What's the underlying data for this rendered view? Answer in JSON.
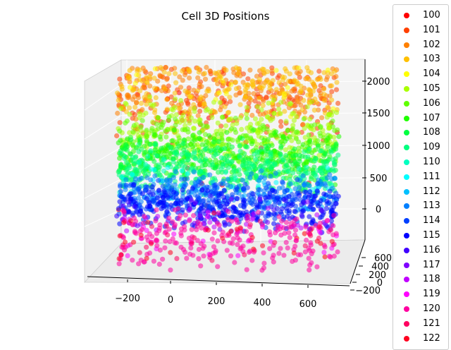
{
  "chart_data": {
    "type": "scatter",
    "subtype": "3d",
    "title": "Cell 3D Positions",
    "xlabel": "",
    "ylabel": "",
    "zlabel": "",
    "xlim": [
      -300,
      750
    ],
    "ylim": [
      -200,
      700
    ],
    "zlim": [
      -300,
      2200
    ],
    "x_ticks": [
      "−200",
      "0",
      "200",
      "400",
      "600"
    ],
    "y_ticks": [
      "−200",
      "0",
      "200",
      "400",
      "600"
    ],
    "z_ticks": [
      "0",
      "500",
      "1000",
      "1500",
      "2000"
    ],
    "legend_position": "right",
    "marker_alpha": 0.55,
    "series": [
      {
        "name": "100",
        "color": "#ff0000",
        "z_range": [
          -250,
          1900
        ],
        "sparse": true
      },
      {
        "name": "101",
        "color": "#ff4000",
        "z_range": [
          1250,
          2150
        ]
      },
      {
        "name": "102",
        "color": "#ff8000",
        "z_range": [
          1450,
          2150
        ]
      },
      {
        "name": "103",
        "color": "#ffc000",
        "z_range": [
          1500,
          2150
        ]
      },
      {
        "name": "104",
        "color": "#ffff00",
        "z_range": [
          1550,
          2150
        ],
        "sparse": true
      },
      {
        "name": "105",
        "color": "#aaff00",
        "z_range": [
          1000,
          1500
        ]
      },
      {
        "name": "106",
        "color": "#60ff00",
        "z_range": [
          900,
          1300
        ]
      },
      {
        "name": "107",
        "color": "#20ff00",
        "z_range": [
          750,
          1150
        ]
      },
      {
        "name": "108",
        "color": "#00ff40",
        "z_range": [
          650,
          1050
        ]
      },
      {
        "name": "109",
        "color": "#00ff80",
        "z_range": [
          600,
          950
        ]
      },
      {
        "name": "110",
        "color": "#00ffc0",
        "z_range": [
          550,
          850
        ],
        "sparse": true
      },
      {
        "name": "111",
        "color": "#00ffff",
        "z_range": [
          500,
          750
        ],
        "sparse": true
      },
      {
        "name": "112",
        "color": "#00c0ff",
        "z_range": [
          450,
          700
        ],
        "sparse": true
      },
      {
        "name": "113",
        "color": "#0080ff",
        "z_range": [
          400,
          650
        ]
      },
      {
        "name": "114",
        "color": "#0040ff",
        "z_range": [
          250,
          550
        ]
      },
      {
        "name": "115",
        "color": "#0000ff",
        "z_range": [
          200,
          450
        ]
      },
      {
        "name": "116",
        "color": "#4000ff",
        "z_range": [
          200,
          400
        ],
        "sparse": true
      },
      {
        "name": "117",
        "color": "#8000ff",
        "z_range": [
          150,
          350
        ],
        "sparse": true
      },
      {
        "name": "118",
        "color": "#c000ff",
        "z_range": [
          100,
          300
        ],
        "sparse": true
      },
      {
        "name": "119",
        "color": "#ff00ff",
        "z_range": [
          -200,
          200
        ],
        "sparse": true
      },
      {
        "name": "120",
        "color": "#ff00a0",
        "z_range": [
          -300,
          200
        ]
      },
      {
        "name": "121",
        "color": "#ff0060",
        "z_range": [
          -300,
          200
        ],
        "sparse": true
      },
      {
        "name": "122",
        "color": "#ff0020",
        "z_range": [
          -300,
          200
        ],
        "sparse": true
      }
    ]
  }
}
